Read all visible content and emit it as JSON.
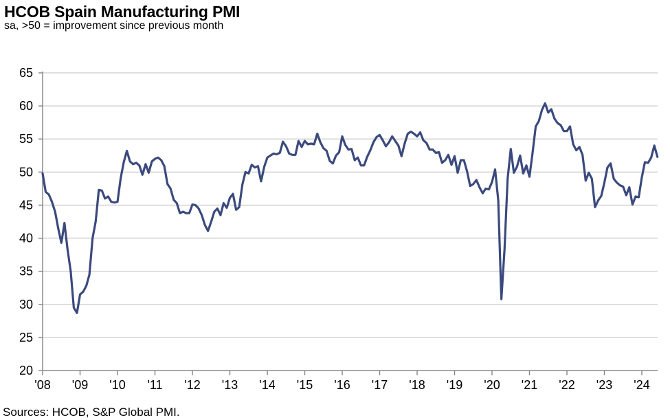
{
  "chart_data": {
    "type": "line",
    "title": "HCOB Spain Manufacturing PMI",
    "subtitle": "sa, >50 = improvement since previous month",
    "source": "Sources: HCOB, S&P Global PMI.",
    "xlabel": "",
    "ylabel": "",
    "ylim": [
      20,
      65
    ],
    "yticks": [
      "20",
      "25",
      "30",
      "35",
      "40",
      "45",
      "50",
      "55",
      "60",
      "65"
    ],
    "xticks": [
      "'08",
      "'09",
      "'10",
      "'11",
      "'12",
      "'13",
      "'14",
      "'15",
      "'16",
      "'17",
      "'18",
      "'19",
      "'20",
      "'21",
      "'22",
      "'23",
      "'24"
    ],
    "x_start": "2008-01",
    "x_end": "2024-06",
    "frequency": "monthly",
    "grid": "horizontal",
    "line_color": "#3b4a7d",
    "series": [
      {
        "values": [
          49.8,
          47.0,
          46.6,
          45.5,
          44.0,
          41.5,
          39.3,
          42.3,
          38.3,
          35.0,
          29.5,
          28.7,
          31.5,
          31.9,
          32.8,
          34.5,
          40.0,
          42.5,
          47.3,
          47.2,
          46.0,
          46.3,
          45.5,
          45.4,
          45.5,
          49.0,
          51.5,
          53.2,
          51.6,
          51.2,
          51.4,
          51.0,
          49.6,
          51.2,
          49.9,
          51.6,
          52.0,
          52.2,
          51.8,
          50.9,
          48.2,
          47.5,
          45.8,
          45.3,
          43.8,
          44.0,
          43.8,
          43.8,
          45.1,
          45.0,
          44.5,
          43.5,
          42.0,
          41.1,
          42.5,
          44.0,
          44.5,
          43.5,
          45.3,
          44.6,
          46.1,
          46.7,
          44.3,
          44.7,
          48.1,
          50.0,
          49.8,
          51.1,
          50.7,
          50.9,
          48.6,
          50.8,
          52.2,
          52.5,
          52.8,
          52.7,
          52.9,
          54.6,
          53.9,
          52.8,
          52.6,
          52.6,
          54.7,
          53.8,
          54.7,
          54.2,
          54.3,
          54.2,
          55.8,
          54.5,
          53.6,
          53.2,
          51.7,
          51.3,
          52.5,
          53.0,
          55.4,
          54.1,
          53.4,
          53.5,
          51.8,
          52.2,
          51.0,
          51.0,
          52.3,
          53.3,
          54.5,
          55.3,
          55.6,
          54.8,
          53.9,
          54.5,
          55.4,
          54.7,
          54.0,
          52.4,
          54.3,
          55.8,
          56.1,
          55.8,
          55.4,
          56.0,
          54.8,
          54.4,
          53.4,
          53.4,
          52.9,
          53.0,
          51.4,
          51.8,
          52.6,
          51.1,
          52.4,
          49.9,
          51.8,
          51.8,
          50.1,
          47.9,
          48.2,
          48.8,
          47.7,
          46.8,
          47.5,
          47.4,
          48.5,
          50.4,
          45.7,
          30.8,
          38.3,
          49.0,
          53.5,
          49.9,
          50.8,
          52.5,
          49.8,
          51.0,
          49.3,
          52.9,
          56.9,
          57.7,
          59.4,
          60.4,
          59.0,
          59.5,
          58.1,
          57.4,
          57.1,
          56.2,
          56.2,
          56.9,
          54.2,
          53.3,
          53.8,
          52.6,
          48.7,
          49.9,
          49.0,
          44.7,
          45.7,
          46.4,
          48.4,
          50.7,
          51.3,
          49.0,
          48.4,
          48.0,
          47.8,
          46.5,
          47.7,
          45.1,
          46.3,
          46.2,
          49.2,
          51.5,
          51.4,
          52.2,
          54.0,
          52.3
        ]
      }
    ]
  }
}
